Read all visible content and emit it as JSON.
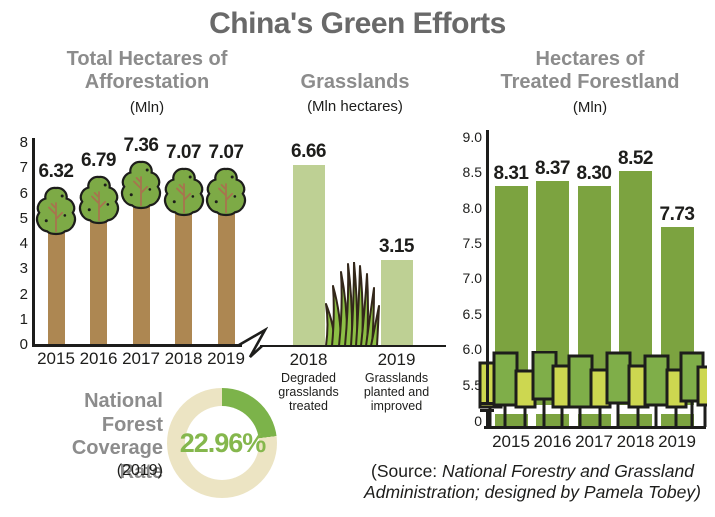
{
  "page_title": "China's Green Efforts",
  "source_note": {
    "prefix": "(Source: ",
    "body": "National Forestry and Grassland Administration; designed by Pamela Tobey",
    "suffix": ")"
  },
  "colors": {
    "main_title_gray": "#696969",
    "heading_gray": "#8c8c8c",
    "text_black": "#1d1d1b",
    "tree_trunk_brown": "#ad8752",
    "tree_canopy_green": "#7daa46",
    "tree_branch_brown": "#a8734e",
    "grassland_bar_light_green": "#bed094",
    "grass_blade_green": "#8cbf45",
    "grass_outline_brown": "#33271a",
    "forestland_bar_green": "#7ca340",
    "deco_tree_yellow_green": "#cdd750",
    "deco_tree_green": "#7fae49",
    "donut_beige": "#ece4c3",
    "donut_green": "#7cb34a",
    "donut_text_green": "#85b74d"
  },
  "chart_data": [
    {
      "id": "afforestation",
      "type": "bar",
      "style": "pictorial-trees",
      "title_line1": "Total Hectares of",
      "title_line2": "Afforestation",
      "unit_label": "(Mln)",
      "categories": [
        "2015",
        "2016",
        "2017",
        "2018",
        "2019"
      ],
      "values": [
        6.32,
        6.79,
        7.36,
        7.07,
        7.07
      ],
      "value_labels": [
        "6.32",
        "6.79",
        "7.36",
        "7.07",
        "7.07"
      ],
      "ylim": [
        0,
        8
      ],
      "yticks": [
        0,
        1,
        2,
        3,
        4,
        5,
        6,
        7,
        8
      ],
      "legend": "none",
      "grid": false
    },
    {
      "id": "grasslands",
      "type": "bar",
      "title": "Grasslands",
      "unit_label": "(Mln hectares)",
      "categories": [
        "2018",
        "2019"
      ],
      "category_descriptions": [
        "Degraded grasslands treated",
        "Grasslands planted and improved"
      ],
      "values": [
        6.66,
        3.15
      ],
      "value_labels": [
        "6.66",
        "3.15"
      ],
      "shares_baseline_with": "afforestation",
      "axis_break_from_previous_chart": true,
      "grid": false
    },
    {
      "id": "treated-forestland",
      "type": "bar",
      "title_line1": "Hectares of",
      "title_line2": "Treated Forestland",
      "unit_label": "(Mln)",
      "categories": [
        "2015",
        "2016",
        "2017",
        "2018",
        "2019"
      ],
      "values": [
        8.31,
        8.37,
        8.3,
        8.52,
        7.73
      ],
      "value_labels": [
        "8.31",
        "8.37",
        "8.30",
        "8.52",
        "7.73"
      ],
      "ytick_labels": [
        "9.0",
        "8.5",
        "8.0",
        "7.5",
        "7.0",
        "6.5",
        "6.0",
        "5.5",
        "0"
      ],
      "ylim_visible": [
        5.5,
        9.0
      ],
      "axis_break": true,
      "grid": false
    },
    {
      "id": "national-forest-coverage",
      "type": "pie",
      "title_lines": [
        "National",
        "Forest",
        "Coverage Rate"
      ],
      "year_label": "(2019)",
      "value_pct": 22.96,
      "value_label": "22.96%"
    }
  ]
}
